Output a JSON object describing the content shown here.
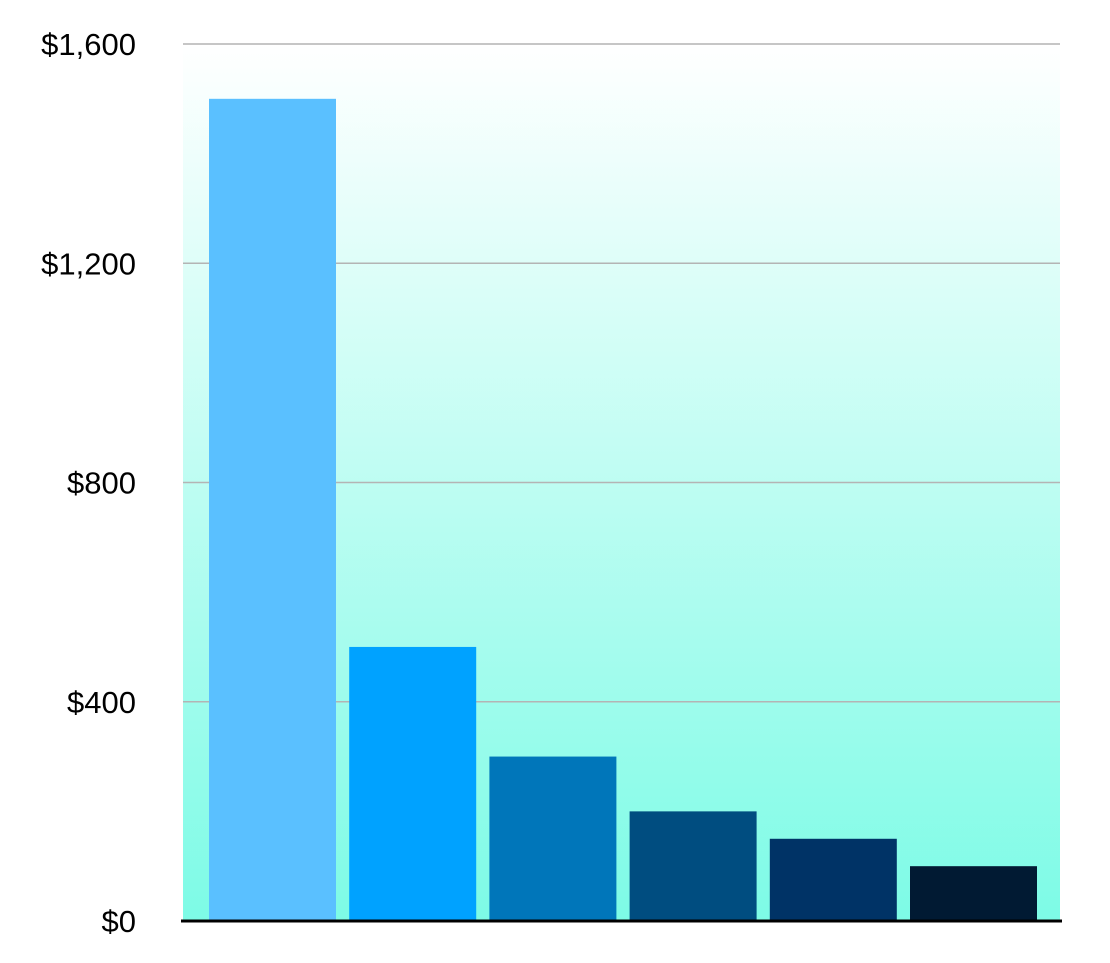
{
  "chart_data": {
    "type": "bar",
    "title": "",
    "xlabel": "",
    "ylabel": "",
    "categories": [
      "",
      "",
      "",
      "",
      "",
      ""
    ],
    "values": [
      1500,
      500,
      300,
      200,
      150,
      100
    ],
    "bar_colors": [
      "#5AC0FF",
      "#00A2FF",
      "#0076BA",
      "#004D80",
      "#003366",
      "#011A33"
    ],
    "ylim": [
      0,
      1600
    ],
    "yticks": [
      0,
      400,
      800,
      1200,
      1600
    ],
    "ytick_labels": [
      "$0",
      "$400",
      "$800",
      "$1,200",
      "$1,600"
    ],
    "grid": true,
    "legend": "none",
    "background_gradient": [
      "#FFFFFF",
      "#7DFBE6"
    ],
    "grid_color": "#B4B4B4",
    "axis_color": "#000000"
  }
}
